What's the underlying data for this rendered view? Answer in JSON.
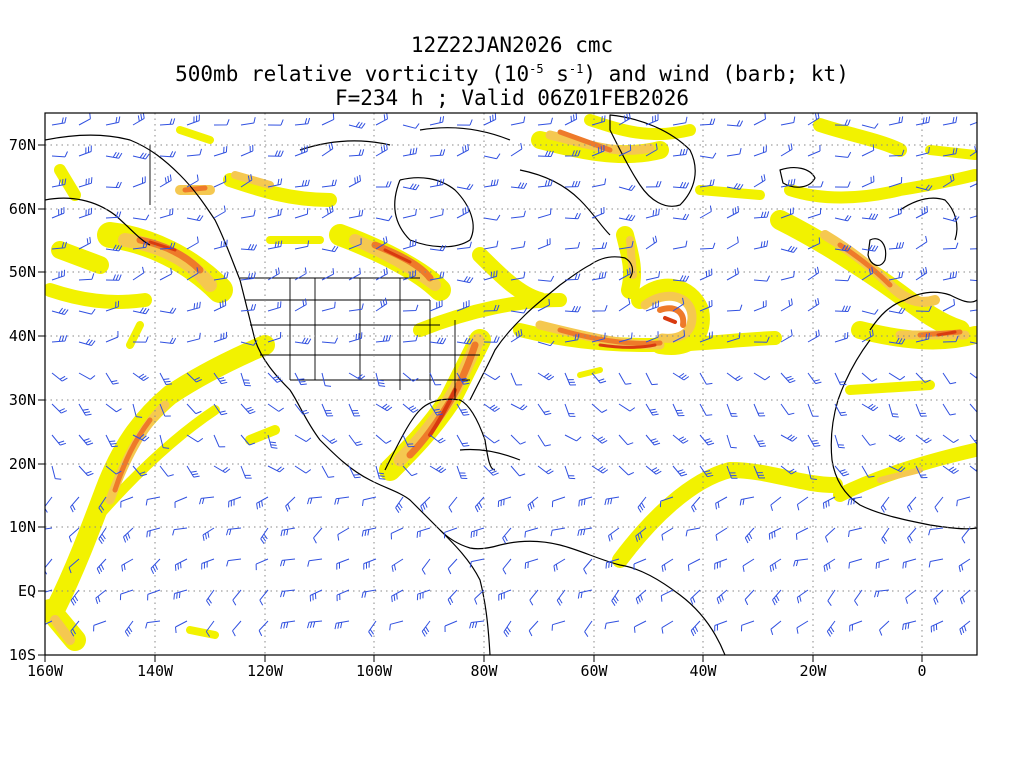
{
  "title": {
    "line1": "12Z22JAN2026 cmc",
    "line2_prefix": "500mb relative vorticity (10",
    "line2_exp1": "-5",
    "line2_mid": " s",
    "line2_exp2": "-1",
    "line2_suffix": ") and wind (barb; kt)",
    "line3": "F=234 h ; Valid 06Z01FEB2026"
  },
  "map": {
    "lon_range": [
      -160,
      10
    ],
    "lat_range": [
      -10,
      75
    ],
    "x_ticks": [
      "160W",
      "140W",
      "120W",
      "100W",
      "80W",
      "60W",
      "40W",
      "20W",
      "0"
    ],
    "y_ticks": [
      "70N",
      "60N",
      "50N",
      "40N",
      "30N",
      "20N",
      "10N",
      "EQ",
      "10S"
    ],
    "colors": {
      "vorticity_low": "#f2f200",
      "vorticity_mid": "#f5c850",
      "vorticity_high": "#ee7a2a",
      "vorticity_max": "#d83a10",
      "barb": "#3050e0",
      "coast": "#000000",
      "grid": "#888888"
    }
  }
}
